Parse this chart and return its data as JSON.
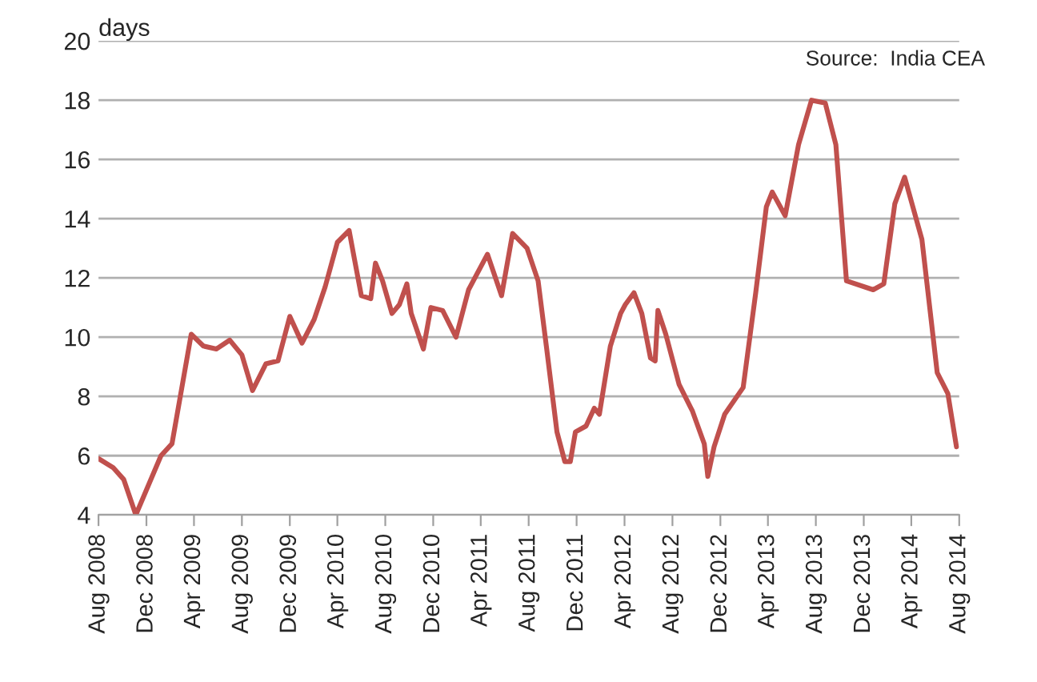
{
  "chart_data": {
    "type": "line",
    "ylabel": "days",
    "annotations": [
      "Source:  India CEA"
    ],
    "x": [
      "2008-08-01",
      "2008-09-07",
      "2008-10-04",
      "2008-11-04",
      "2009-01-07",
      "2009-02-04",
      "2009-03-25",
      "2009-04-25",
      "2009-05-28",
      "2009-07-01",
      "2009-08-01",
      "2009-08-28",
      "2009-10-01",
      "2009-11-01",
      "2009-12-01",
      "2010-01-01",
      "2010-02-01",
      "2010-03-01",
      "2010-04-01",
      "2010-05-01",
      "2010-05-15",
      "2010-06-01",
      "2010-06-25",
      "2010-07-07",
      "2010-07-25",
      "2010-08-18",
      "2010-09-06",
      "2010-09-25",
      "2010-10-06",
      "2010-11-06",
      "2010-11-25",
      "2010-12-25",
      "2011-01-28",
      "2011-03-01",
      "2011-04-18",
      "2011-05-24",
      "2011-06-21",
      "2011-07-28",
      "2011-08-25",
      "2011-09-15",
      "2011-10-12",
      "2011-11-01",
      "2011-11-15",
      "2011-11-28",
      "2011-12-25",
      "2012-01-15",
      "2012-01-28",
      "2012-02-25",
      "2012-03-22",
      "2012-04-03",
      "2012-04-25",
      "2012-05-15",
      "2012-06-06",
      "2012-06-18",
      "2012-06-25",
      "2012-07-15",
      "2012-08-18",
      "2012-09-21",
      "2012-10-21",
      "2012-10-30",
      "2012-11-15",
      "2012-12-12",
      "2013-01-28",
      "2013-03-01",
      "2013-03-28",
      "2013-04-12",
      "2013-05-15",
      "2013-06-18",
      "2013-07-21",
      "2013-08-25",
      "2013-09-21",
      "2013-10-18",
      "2013-12-25",
      "2014-01-21",
      "2014-02-18",
      "2014-03-15",
      "2014-04-28",
      "2014-06-06",
      "2014-07-03",
      "2014-07-25"
    ],
    "series": [
      {
        "color": "#c0504d",
        "values": [
          5.9,
          5.6,
          5.2,
          4.0,
          6.0,
          6.4,
          10.1,
          9.7,
          9.6,
          9.9,
          9.4,
          8.2,
          9.1,
          9.2,
          10.7,
          9.8,
          10.6,
          11.7,
          13.2,
          13.6,
          12.6,
          11.4,
          11.3,
          12.5,
          11.9,
          10.8,
          11.1,
          11.8,
          10.8,
          9.6,
          11.0,
          10.9,
          10.0,
          11.6,
          12.8,
          11.4,
          13.5,
          13.0,
          11.9,
          9.7,
          6.8,
          5.8,
          5.8,
          6.8,
          7.0,
          7.6,
          7.4,
          9.7,
          10.8,
          11.1,
          11.5,
          10.8,
          9.3,
          9.2,
          10.9,
          10.1,
          8.4,
          7.5,
          6.4,
          5.3,
          6.3,
          7.4,
          8.3,
          11.5,
          14.4,
          14.9,
          14.1,
          16.5,
          18.0,
          17.9,
          16.5,
          11.9,
          11.6,
          11.8,
          14.5,
          15.4,
          13.3,
          8.8,
          8.1,
          6.3
        ]
      }
    ],
    "xlim": [
      "2008-08-01",
      "2014-08-01"
    ],
    "xticks": [
      {
        "value": "2008-08-01",
        "label": "Aug 2008"
      },
      {
        "value": "2008-12-01",
        "label": "Dec 2008"
      },
      {
        "value": "2009-04-01",
        "label": "Apr 2009"
      },
      {
        "value": "2009-08-01",
        "label": "Aug 2009"
      },
      {
        "value": "2009-12-01",
        "label": "Dec 2009"
      },
      {
        "value": "2010-04-01",
        "label": "Apr 2010"
      },
      {
        "value": "2010-08-01",
        "label": "Aug 2010"
      },
      {
        "value": "2010-12-01",
        "label": "Dec 2010"
      },
      {
        "value": "2011-04-01",
        "label": "Apr 2011"
      },
      {
        "value": "2011-08-01",
        "label": "Aug 2011"
      },
      {
        "value": "2011-12-01",
        "label": "Dec 2011"
      },
      {
        "value": "2012-04-01",
        "label": "Apr 2012"
      },
      {
        "value": "2012-08-01",
        "label": "Aug 2012"
      },
      {
        "value": "2012-12-01",
        "label": "Dec 2012"
      },
      {
        "value": "2013-04-01",
        "label": "Apr 2013"
      },
      {
        "value": "2013-08-01",
        "label": "Aug 2013"
      },
      {
        "value": "2013-12-01",
        "label": "Dec 2013"
      },
      {
        "value": "2014-04-01",
        "label": "Apr 2014"
      },
      {
        "value": "2014-08-01",
        "label": "Aug 2014"
      }
    ],
    "ylim": [
      4,
      20
    ],
    "yticks": [
      4,
      6,
      8,
      10,
      12,
      14,
      16,
      18,
      20
    ],
    "grid": "y",
    "line_style": "solid",
    "marker": "none"
  }
}
